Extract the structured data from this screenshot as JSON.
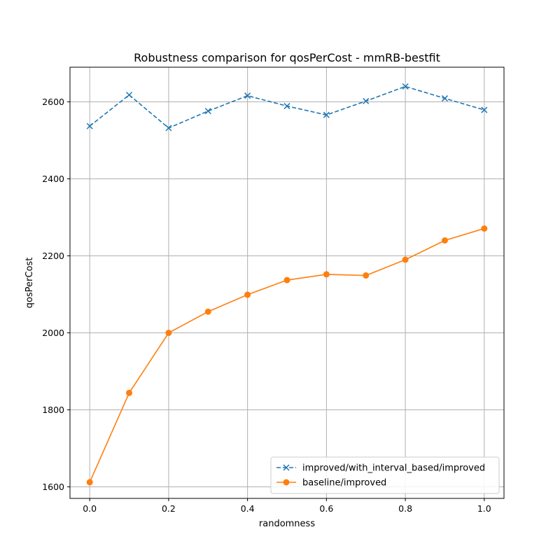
{
  "chart_data": {
    "type": "line",
    "title": "Robustness comparison for qosPerCost - mmRB-bestfit",
    "xlabel": "randomness",
    "ylabel": "qosPerCost",
    "xlim": [
      -0.05,
      1.05
    ],
    "ylim": [
      1570,
      2690
    ],
    "xticks": [
      0.0,
      0.2,
      0.4,
      0.6,
      0.8,
      1.0
    ],
    "xtick_labels": [
      "0.0",
      "0.2",
      "0.4",
      "0.6",
      "0.8",
      "1.0"
    ],
    "yticks": [
      1600,
      1800,
      2000,
      2200,
      2400,
      2600
    ],
    "ytick_labels": [
      "1600",
      "1800",
      "2000",
      "2200",
      "2400",
      "2600"
    ],
    "grid": true,
    "legend_position": "lower-right",
    "x": [
      0.0,
      0.1,
      0.2,
      0.3,
      0.4,
      0.5,
      0.6,
      0.7,
      0.8,
      0.9,
      1.0
    ],
    "series": [
      {
        "name": "improved/with_interval_based/improved",
        "color": "#1f77b4",
        "line_style": "dashed",
        "marker": "x",
        "values": [
          2537,
          2618,
          2532,
          2576,
          2616,
          2589,
          2566,
          2602,
          2640,
          2609,
          2579
        ]
      },
      {
        "name": "baseline/improved",
        "color": "#ff7f0e",
        "line_style": "solid",
        "marker": "circle",
        "values": [
          1612,
          1844,
          2000,
          2055,
          2099,
          2137,
          2152,
          2149,
          2190,
          2240,
          2271
        ]
      }
    ]
  }
}
